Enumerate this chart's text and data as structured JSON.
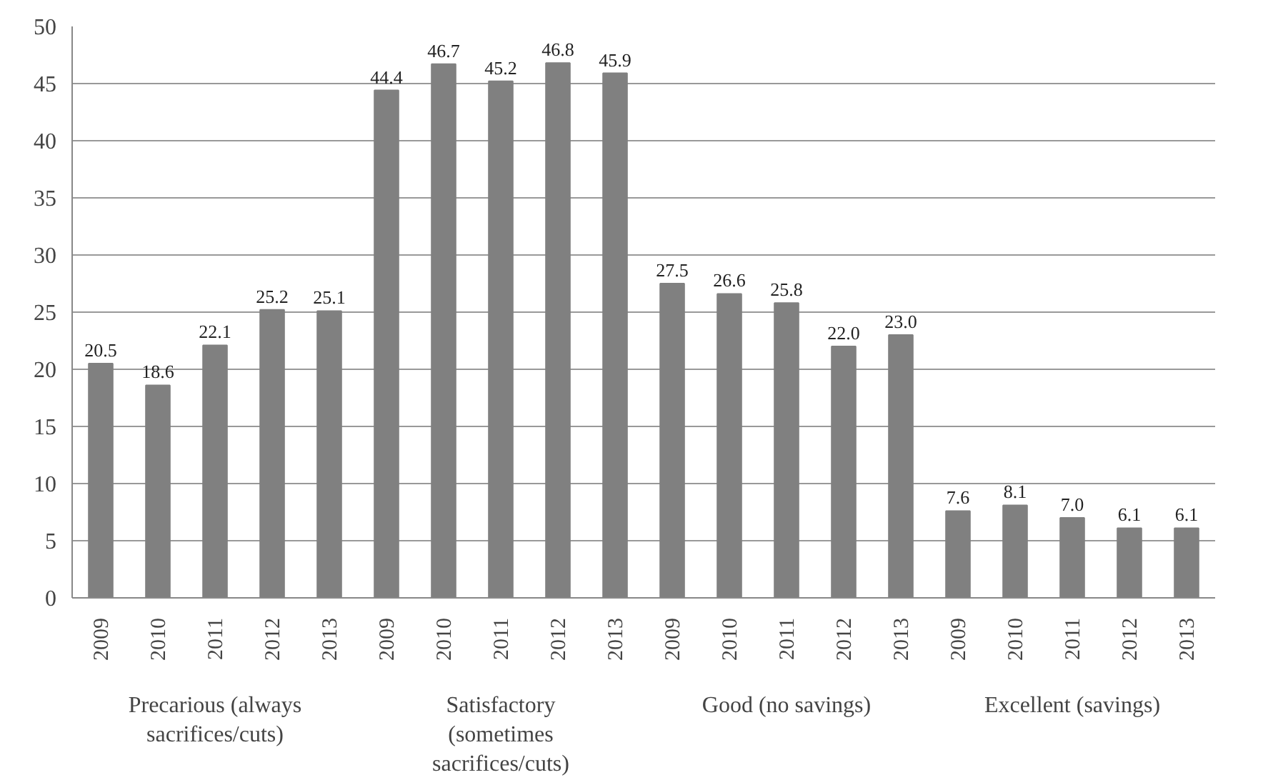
{
  "chart_data": {
    "type": "bar",
    "categories": [
      "2009",
      "2010",
      "2011",
      "2012",
      "2013",
      "2009",
      "2010",
      "2011",
      "2012",
      "2013",
      "2009",
      "2010",
      "2011",
      "2012",
      "2013",
      "2009",
      "2010",
      "2011",
      "2012",
      "2013"
    ],
    "values": [
      20.5,
      18.6,
      22.1,
      25.2,
      25.1,
      44.4,
      46.7,
      45.2,
      46.8,
      45.9,
      27.5,
      26.6,
      25.8,
      22.0,
      23.0,
      7.6,
      8.1,
      7.0,
      6.1,
      6.1
    ],
    "color": "#808080",
    "value_labels": [
      "20.5",
      "18.6",
      "22.1",
      "25.2",
      "25.1",
      "44.4",
      "46.7",
      "45.2",
      "46.8",
      "45.9",
      "27.5",
      "26.6",
      "25.8",
      "22.0",
      "23.0",
      "7.6",
      "8.1",
      "7.0",
      "6.1",
      "6.1"
    ],
    "ylim": [
      0,
      50
    ],
    "yticks": [
      0,
      5,
      10,
      15,
      20,
      25,
      30,
      35,
      40,
      45,
      50
    ],
    "grid": "y",
    "annotations": [
      "Precarious (always sacrifices/cuts)",
      "Satisfactory (sometimes sacrifices/cuts)",
      "Good (no savings)",
      "Excellent (savings)"
    ]
  }
}
